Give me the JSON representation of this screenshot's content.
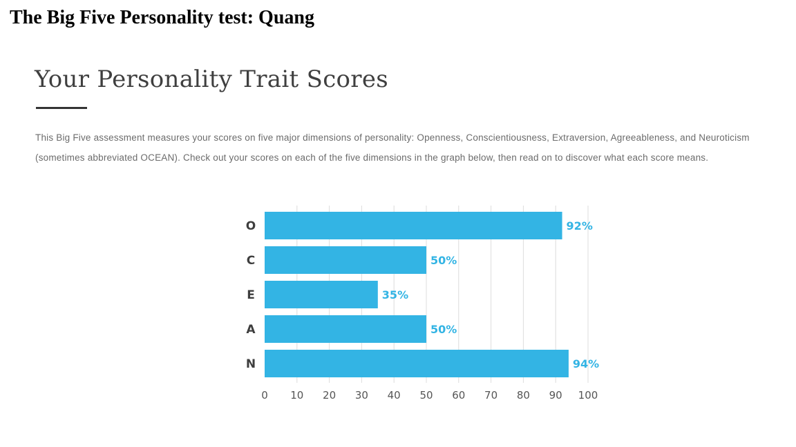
{
  "page": {
    "title": "The Big Five Personality test: Quang"
  },
  "section": {
    "heading": "Your Personality Trait Scores",
    "intro": "This Big Five assessment measures your scores on five major dimensions of personality: Openness, Conscientiousness, Extraversion, Agreeableness, and Neuroticism (sometimes abbreviated OCEAN). Check out your scores on each of the five dimensions in the graph below, then read on to discover what each score means."
  },
  "colors": {
    "bar": "#33b4e4",
    "value_label": "#33b4e4",
    "grid": "#dcdcdc"
  },
  "chart_data": {
    "type": "bar",
    "orientation": "horizontal",
    "categories": [
      "O",
      "C",
      "E",
      "A",
      "N"
    ],
    "values": [
      92,
      50,
      35,
      50,
      94
    ],
    "value_labels": [
      "92%",
      "50%",
      "35%",
      "50%",
      "94%"
    ],
    "xticks": [
      0,
      10,
      20,
      30,
      40,
      50,
      60,
      70,
      80,
      90,
      100
    ],
    "xlim": [
      0,
      100
    ],
    "title": "",
    "xlabel": "",
    "ylabel": "",
    "grid": true,
    "legend": "none"
  }
}
